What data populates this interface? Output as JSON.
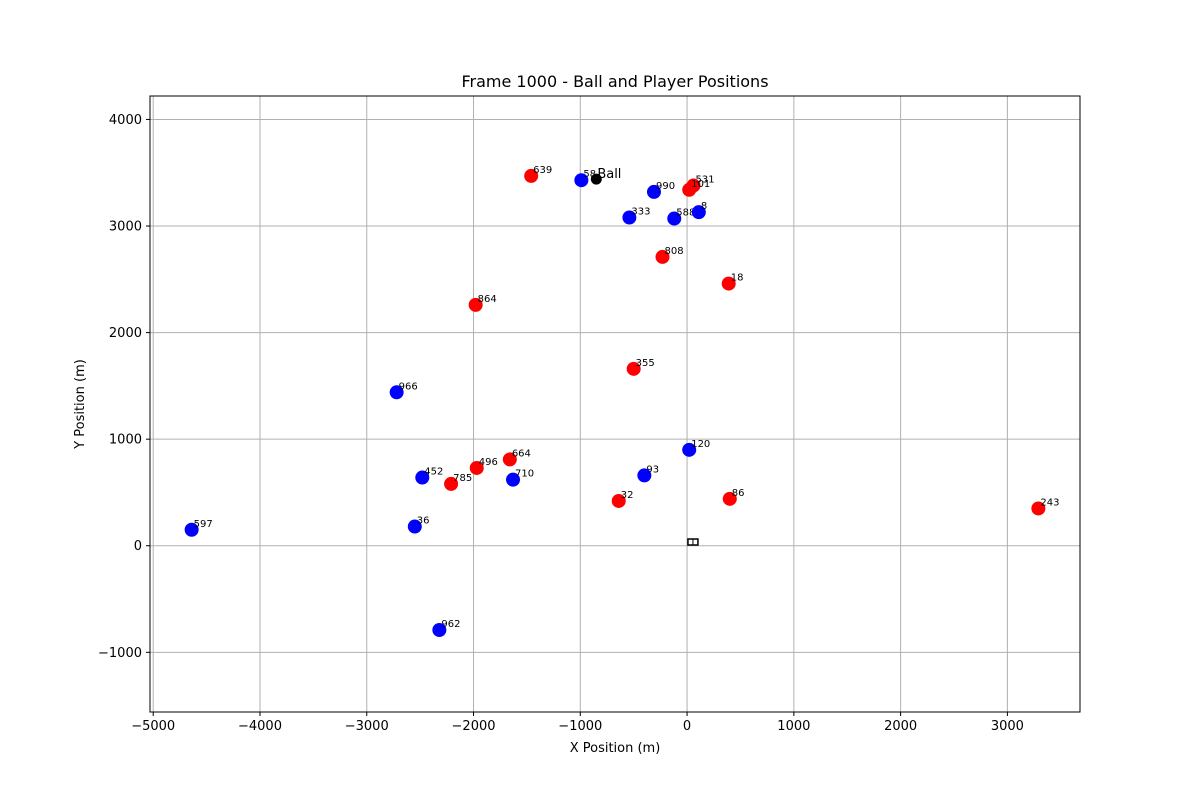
{
  "chart_data": {
    "type": "scatter",
    "title": "Frame 1000 - Ball and Player Positions",
    "xlabel": "X Position (m)",
    "ylabel": "Y Position (m)",
    "xlim": [
      -5030,
      3680
    ],
    "ylim": [
      -1560,
      4220
    ],
    "xticks": [
      -5000,
      -4000,
      -3000,
      -2000,
      -1000,
      0,
      1000,
      2000,
      3000
    ],
    "yticks": [
      -1000,
      0,
      1000,
      2000,
      3000,
      4000
    ],
    "xtick_labels": [
      "−5000",
      "−4000",
      "−3000",
      "−2000",
      "−1000",
      "0",
      "1000",
      "2000",
      "3000"
    ],
    "ytick_labels": [
      "−1000",
      "0",
      "1000",
      "2000",
      "3000",
      "4000"
    ],
    "grid": true,
    "colors": {
      "team_a": "#ff0000",
      "team_b": "#0000ff",
      "ball": "#000000"
    },
    "series": [
      {
        "color": "#ff0000",
        "points": [
          {
            "x": -1460,
            "y": 3470,
            "label": "639"
          },
          {
            "x": 60,
            "y": 3380,
            "label": "531"
          },
          {
            "x": 20,
            "y": 3340,
            "label": "101"
          },
          {
            "x": -230,
            "y": 2710,
            "label": "808"
          },
          {
            "x": 390,
            "y": 2460,
            "label": "18"
          },
          {
            "x": -1980,
            "y": 2260,
            "label": "864"
          },
          {
            "x": -500,
            "y": 1660,
            "label": "355"
          },
          {
            "x": -1660,
            "y": 810,
            "label": "664"
          },
          {
            "x": -1970,
            "y": 730,
            "label": "496"
          },
          {
            "x": -2210,
            "y": 580,
            "label": "785"
          },
          {
            "x": -640,
            "y": 420,
            "label": "32"
          },
          {
            "x": 400,
            "y": 440,
            "label": "86"
          },
          {
            "x": 3290,
            "y": 350,
            "label": "243"
          }
        ]
      },
      {
        "color": "#0000ff",
        "points": [
          {
            "x": -990,
            "y": 3430,
            "label": "58"
          },
          {
            "x": -310,
            "y": 3320,
            "label": "990"
          },
          {
            "x": -540,
            "y": 3080,
            "label": "333"
          },
          {
            "x": -120,
            "y": 3070,
            "label": "588"
          },
          {
            "x": 110,
            "y": 3130,
            "label": "8"
          },
          {
            "x": -2720,
            "y": 1440,
            "label": "966"
          },
          {
            "x": 20,
            "y": 900,
            "label": "120"
          },
          {
            "x": -400,
            "y": 660,
            "label": "93"
          },
          {
            "x": -2480,
            "y": 640,
            "label": "452"
          },
          {
            "x": -1630,
            "y": 620,
            "label": "710"
          },
          {
            "x": -2550,
            "y": 180,
            "label": "36"
          },
          {
            "x": -4640,
            "y": 150,
            "label": "597"
          },
          {
            "x": -2320,
            "y": -790,
            "label": "962"
          }
        ]
      }
    ],
    "ball": {
      "x": -850,
      "y": 3440,
      "label": "Ball"
    },
    "markers": [
      {
        "x": 55,
        "y": 35,
        "shape": "square-outline"
      }
    ]
  }
}
